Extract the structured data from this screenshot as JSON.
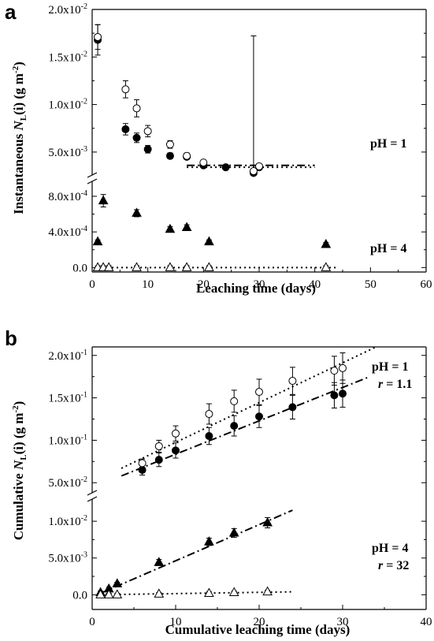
{
  "chart_data": [
    {
      "panel": "a",
      "type": "scatter",
      "xlabel": "Leaching time (days)",
      "ylabel": "Instantaneous N_L(i) (g m^-2)",
      "xlim": [
        0,
        60
      ],
      "x_ticks": [
        "0",
        "10",
        "20",
        "30",
        "40",
        "50",
        "60"
      ],
      "y_upper": {
        "ylim": [
          0.00275,
          0.02
        ],
        "ticks": [
          "5.0x10^-3",
          "1.0x10^-2",
          "1.5x10^-2",
          "2.0x10^-2"
        ]
      },
      "y_lower": {
        "ylim": [
          -5e-05,
          0.00095
        ],
        "ticks": [
          "0.0",
          "4.0x10^-4",
          "8.0x10^-4"
        ]
      },
      "axis_break": true,
      "annotations": [
        "pH = 1",
        "pH = 4"
      ],
      "series": [
        {
          "marker": "filled-circle",
          "group": "pH = 1",
          "points": [
            [
              1,
              0.0168,
              0.0016
            ],
            [
              6,
              0.0074,
              0.0006
            ],
            [
              8,
              0.0065,
              0.0005
            ],
            [
              10,
              0.0053,
              0.0004
            ],
            [
              14,
              0.0046,
              0.0003
            ],
            [
              17,
              0.0045,
              0.0002
            ],
            [
              20,
              0.0036,
              0.0002
            ],
            [
              24,
              0.0034,
              0.0001
            ],
            [
              29,
              0.0028,
              0.0002
            ],
            [
              30,
              0.0034,
              0.0001
            ]
          ]
        },
        {
          "marker": "open-circle",
          "group": "pH = 1",
          "points": [
            [
              1,
              0.0171,
              0.0013
            ],
            [
              6,
              0.0116,
              0.0009
            ],
            [
              8,
              0.0096,
              0.0009
            ],
            [
              10,
              0.0072,
              0.0006
            ],
            [
              14,
              0.0058,
              0.0004
            ],
            [
              17,
              0.0046,
              0.0003
            ],
            [
              20,
              0.0039,
              0.0002
            ],
            [
              29,
              0.003,
              0.0002
            ],
            [
              30,
              0.0035,
              0.0001
            ]
          ]
        },
        {
          "marker": "filled-triangle",
          "group": "pH = 4",
          "points": [
            [
              1,
              0.00029,
              2e-05
            ],
            [
              2,
              0.00075,
              7e-05
            ],
            [
              8,
              0.00061,
              4e-05
            ],
            [
              14,
              0.00043,
              3e-05
            ],
            [
              17,
              0.00045,
              3e-05
            ],
            [
              21,
              0.00029,
              2e-05
            ],
            [
              42,
              0.00026,
              2e-05
            ]
          ]
        },
        {
          "marker": "open-triangle",
          "group": "pH = 4",
          "points": [
            [
              1,
              0.0,
              2e-05
            ],
            [
              2,
              0.0,
              2e-05
            ],
            [
              3,
              0.0,
              2e-05
            ],
            [
              8,
              0.0,
              2e-05
            ],
            [
              14,
              0.0,
              2e-05
            ],
            [
              17,
              0.0,
              2e-05
            ],
            [
              21,
              0.0,
              2e-05
            ],
            [
              42,
              0.0,
              2e-05
            ]
          ]
        }
      ],
      "fit_lines": [
        {
          "style": "dash-dot",
          "x": [
            17,
            40
          ],
          "y": [
            0.0036,
            0.0036
          ]
        },
        {
          "style": "dotted",
          "x": [
            17,
            40
          ],
          "y": [
            0.0034,
            0.0034
          ]
        },
        {
          "style": "dotted",
          "x": [
            1,
            44
          ],
          "y": [
            0.0,
            0.0
          ]
        }
      ]
    },
    {
      "panel": "b",
      "type": "scatter",
      "xlabel": "Cumulative leaching time (days)",
      "ylabel": "Cumulative N_L(i) (g m^-2)",
      "xlim": [
        0,
        40
      ],
      "x_ticks": [
        "0",
        "10",
        "20",
        "30",
        "40"
      ],
      "y_upper": {
        "ylim": [
          0.04,
          0.21
        ],
        "ticks": [
          "5.0x10^-2",
          "1.0x10^-1",
          "1.5x10^-1",
          "2.0x10^-1"
        ]
      },
      "y_lower": {
        "ylim": [
          -0.002,
          0.0128
        ],
        "ticks": [
          "0.0",
          "5.0x10^-3",
          "1.0x10^-2"
        ]
      },
      "axis_break": true,
      "annotations": [
        "pH = 1",
        "r = 1.1",
        "pH = 4",
        "r = 32"
      ],
      "series": [
        {
          "marker": "filled-circle",
          "group": "pH = 1",
          "points": [
            [
              6,
              0.065,
              0.006
            ],
            [
              8,
              0.077,
              0.008
            ],
            [
              10,
              0.088,
              0.009
            ],
            [
              14,
              0.105,
              0.01
            ],
            [
              17,
              0.117,
              0.012
            ],
            [
              20,
              0.128,
              0.013
            ],
            [
              24,
              0.139,
              0.014
            ],
            [
              29,
              0.153,
              0.015
            ],
            [
              30,
              0.155,
              0.016
            ]
          ]
        },
        {
          "marker": "open-circle",
          "group": "pH = 1",
          "points": [
            [
              6,
              0.073,
              0.005
            ],
            [
              8,
              0.093,
              0.007
            ],
            [
              10,
              0.108,
              0.009
            ],
            [
              14,
              0.131,
              0.012
            ],
            [
              17,
              0.146,
              0.013
            ],
            [
              20,
              0.157,
              0.015
            ],
            [
              24,
              0.17,
              0.016
            ],
            [
              29,
              0.182,
              0.017
            ],
            [
              30,
              0.185,
              0.018
            ]
          ]
        },
        {
          "marker": "filled-triangle",
          "group": "pH = 4",
          "points": [
            [
              1,
              0.0003,
              0.0002
            ],
            [
              2,
              0.0008,
              0.0002
            ],
            [
              3,
              0.0015,
              0.0002
            ],
            [
              8,
              0.0044,
              0.0004
            ],
            [
              14,
              0.0072,
              0.0005
            ],
            [
              17,
              0.0084,
              0.0006
            ],
            [
              21,
              0.0098,
              0.0007
            ]
          ]
        },
        {
          "marker": "open-triangle",
          "group": "pH = 4",
          "points": [
            [
              1,
              0.0,
              0.0002
            ],
            [
              2,
              0.0,
              0.0002
            ],
            [
              3,
              0.0,
              0.0002
            ],
            [
              8,
              0.0001,
              0.0002
            ],
            [
              14,
              0.0002,
              0.0002
            ],
            [
              17,
              0.0003,
              0.0002
            ],
            [
              21,
              0.0004,
              0.0002
            ]
          ]
        }
      ],
      "fit_lines": [
        {
          "style": "dotted",
          "x": [
            3.5,
            34
          ],
          "y": [
            0.067,
            0.21
          ]
        },
        {
          "style": "dash-dot",
          "x": [
            3.5,
            33
          ],
          "y": [
            0.058,
            0.174
          ]
        },
        {
          "style": "dash-dot",
          "x": [
            1,
            24
          ],
          "y": [
            0.0002,
            0.0115
          ]
        },
        {
          "style": "dotted",
          "x": [
            1,
            24
          ],
          "y": [
            0.0,
            0.0004
          ]
        }
      ]
    }
  ]
}
